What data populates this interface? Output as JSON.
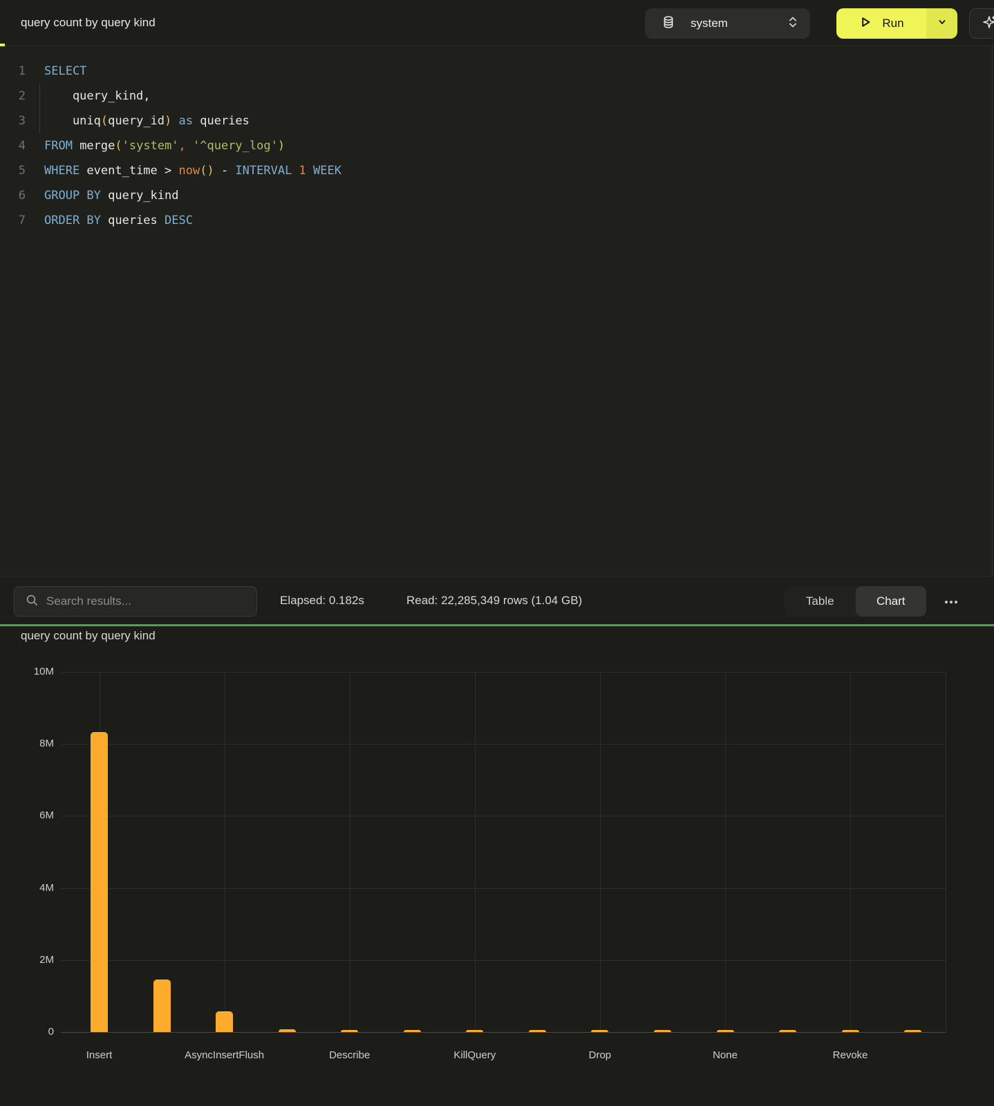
{
  "header": {
    "title": "query count by query kind",
    "database_selector": {
      "value": "system",
      "icon": "database-icon"
    },
    "run_button": {
      "label": "Run",
      "icon": "play-icon"
    },
    "assistant_button": {
      "icon": "sparkles-icon"
    }
  },
  "editor": {
    "lines": [
      {
        "n": "1",
        "tokens": [
          {
            "t": "SELECT",
            "c": "kw"
          }
        ]
      },
      {
        "n": "2",
        "tokens": [
          {
            "t": "    query_kind,",
            "c": "id"
          }
        ]
      },
      {
        "n": "3",
        "tokens": [
          {
            "t": "    uniq",
            "c": "id"
          },
          {
            "t": "(",
            "c": "paren"
          },
          {
            "t": "query_id",
            "c": "id"
          },
          {
            "t": ")",
            "c": "paren"
          },
          {
            "t": " ",
            "c": "id"
          },
          {
            "t": "as",
            "c": "kw"
          },
          {
            "t": " queries",
            "c": "id"
          }
        ]
      },
      {
        "n": "4",
        "tokens": [
          {
            "t": "FROM",
            "c": "kw"
          },
          {
            "t": " merge",
            "c": "id"
          },
          {
            "t": "(",
            "c": "paren"
          },
          {
            "t": "'system'",
            "c": "str"
          },
          {
            "t": ",",
            "c": "num"
          },
          {
            "t": " ",
            "c": "id"
          },
          {
            "t": "'^query_log'",
            "c": "str"
          },
          {
            "t": ")",
            "c": "paren"
          }
        ]
      },
      {
        "n": "5",
        "tokens": [
          {
            "t": "WHERE",
            "c": "kw"
          },
          {
            "t": " event_time > ",
            "c": "id"
          },
          {
            "t": "now",
            "c": "num"
          },
          {
            "t": "(",
            "c": "paren"
          },
          {
            "t": ")",
            "c": "paren"
          },
          {
            "t": " - ",
            "c": "id"
          },
          {
            "t": "INTERVAL",
            "c": "kw"
          },
          {
            "t": " 1 ",
            "c": "num"
          },
          {
            "t": "WEEK",
            "c": "kw"
          }
        ]
      },
      {
        "n": "6",
        "tokens": [
          {
            "t": "GROUP BY",
            "c": "kw"
          },
          {
            "t": " query_kind",
            "c": "id"
          }
        ]
      },
      {
        "n": "7",
        "tokens": [
          {
            "t": "ORDER BY",
            "c": "kw"
          },
          {
            "t": " queries ",
            "c": "id"
          },
          {
            "t": "DESC",
            "c": "kw"
          }
        ]
      }
    ]
  },
  "results_bar": {
    "search": {
      "placeholder": "Search results..."
    },
    "elapsed": "Elapsed: 0.182s",
    "read": "Read: 22,285,349 rows (1.04 GB)",
    "view_toggle": {
      "options": [
        "Table",
        "Chart"
      ],
      "selected": "Chart"
    }
  },
  "chart": {
    "title": "query count by query kind"
  },
  "chart_data": {
    "type": "bar",
    "title": "query count by query kind",
    "categories": [
      "Insert",
      "",
      "AsyncInsertFlush",
      "",
      "Describe",
      "",
      "KillQuery",
      "",
      "Drop",
      "",
      "None",
      "",
      "Revoke",
      ""
    ],
    "values": [
      8330000,
      1450000,
      580000,
      70000,
      66000,
      62000,
      58000,
      55000,
      52000,
      50000,
      48000,
      46000,
      44000,
      42000
    ],
    "xlabel": "",
    "ylabel": "",
    "ylim": [
      0,
      10000000
    ],
    "y_ticks": [
      "10M",
      "8M",
      "6M",
      "4M",
      "2M",
      "0"
    ],
    "y_tick_values": [
      10000000,
      8000000,
      6000000,
      4000000,
      2000000,
      0
    ],
    "x_label_interval": 2,
    "grid": true,
    "legend": false,
    "bar_color": "#fcab2d"
  },
  "colors": {
    "accent_yellow": "#eff457",
    "run_split_yellow": "#e1e84e",
    "divider_green": "#4aa550",
    "bar_orange": "#fcab2d",
    "keyword_blue": "#7fb0d2",
    "string_olive": "#b4bc60",
    "number_orange": "#e0884a",
    "paren_gold": "#e3c35f"
  }
}
